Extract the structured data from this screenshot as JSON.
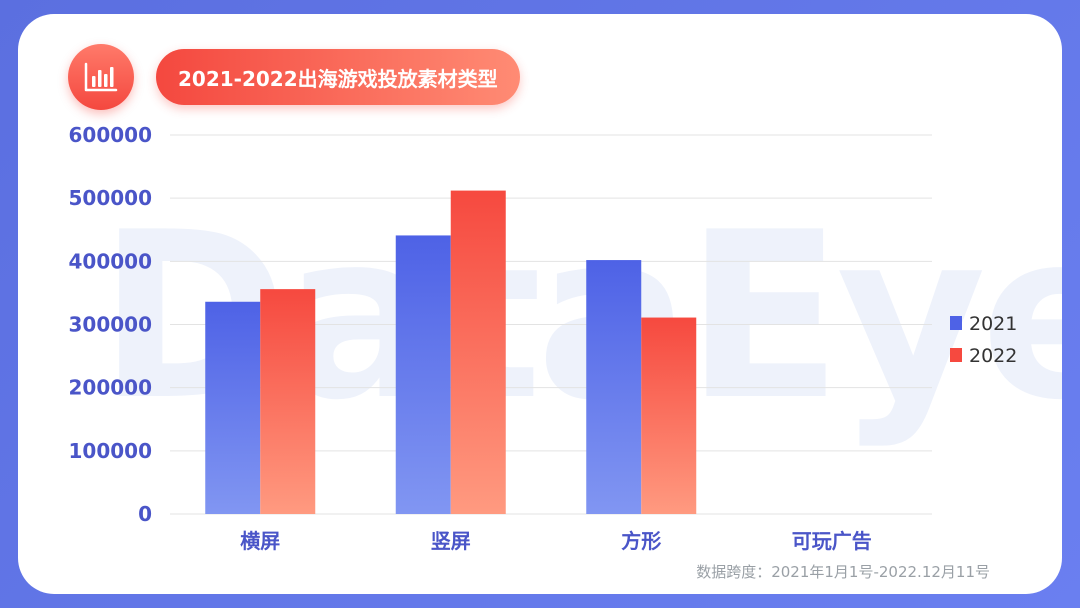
{
  "header": {
    "title": "2021-2022出海游戏投放素材类型",
    "icon": "bar-chart-icon"
  },
  "watermark": "DataEye",
  "footnote": "数据跨度：2021年1月1号-2022.12月11号",
  "colors": {
    "series_2021_top": "#4e62e6",
    "series_2021_bottom": "#8196f2",
    "series_2022_top": "#f6493f",
    "series_2022_bottom": "#ff9a80",
    "axis_text": "#4a55c8",
    "category_text": "#4a55c8",
    "grid": "#e3e3e3"
  },
  "chart_data": {
    "type": "bar",
    "categories": [
      "横屏",
      "竖屏",
      "方形",
      "可玩广告"
    ],
    "series": [
      {
        "name": "2021",
        "values": [
          336000,
          441000,
          402000,
          0
        ]
      },
      {
        "name": "2022",
        "values": [
          356000,
          512000,
          311000,
          0
        ]
      }
    ],
    "title": "2021-2022出海游戏投放素材类型",
    "xlabel": "",
    "ylabel": "",
    "ylim": [
      0,
      600000
    ],
    "yticks": [
      "0",
      "100000",
      "200000",
      "300000",
      "400000",
      "500000",
      "600000"
    ],
    "grid": true,
    "legend_position": "right"
  }
}
